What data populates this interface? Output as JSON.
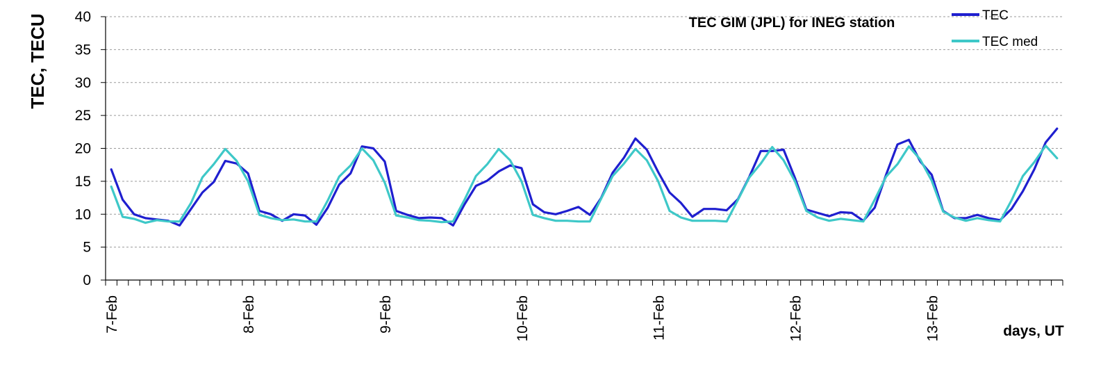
{
  "chart_data": {
    "type": "line",
    "title": "TEC GIM (JPL) for INEG station",
    "xlabel": "days, UT",
    "ylabel": "TEC, TECU",
    "ylim": [
      0,
      40
    ],
    "yticks": [
      "0",
      "5",
      "10",
      "15",
      "20",
      "25",
      "30",
      "35",
      "40"
    ],
    "x_tick_labels": [
      "7-Feb",
      "8-Feb",
      "9-Feb",
      "10-Feb",
      "11-Feb",
      "12-Feb",
      "13-Feb"
    ],
    "points_per_day": 12,
    "grid": "horizontal-dashed",
    "legend_position": "top-right",
    "colors": {
      "TEC": "#1f1fcf",
      "TEC med": "#3ec8c8"
    },
    "series": [
      {
        "name": "TEC",
        "values": [
          16.8,
          12.2,
          10.0,
          9.4,
          9.2,
          9.0,
          8.3,
          10.8,
          13.3,
          14.9,
          18.1,
          17.7,
          16.2,
          10.5,
          10.0,
          9.0,
          10.0,
          9.8,
          8.4,
          11.0,
          14.5,
          16.2,
          20.3,
          20.0,
          18.0,
          10.5,
          9.9,
          9.4,
          9.5,
          9.4,
          8.3,
          11.5,
          14.3,
          15.1,
          16.5,
          17.4,
          17.0,
          11.5,
          10.3,
          10.0,
          10.5,
          11.1,
          9.9,
          12.5,
          16.3,
          18.6,
          21.5,
          19.8,
          16.4,
          13.3,
          11.7,
          9.6,
          10.8,
          10.8,
          10.6,
          12.3,
          15.7,
          19.6,
          19.6,
          19.8,
          15.5,
          10.7,
          10.2,
          9.7,
          10.3,
          10.2,
          9.0,
          11.0,
          16.0,
          20.6,
          21.3,
          18.0,
          16.0,
          10.5,
          9.4,
          9.4,
          9.9,
          9.4,
          9.1,
          10.8,
          13.5,
          16.8,
          20.9,
          23.0
        ]
      },
      {
        "name": "TEC med",
        "values": [
          14.2,
          9.6,
          9.3,
          8.7,
          9.1,
          8.9,
          8.9,
          11.7,
          15.6,
          17.6,
          19.9,
          18.1,
          15.0,
          9.9,
          9.4,
          9.1,
          9.2,
          8.9,
          8.9,
          12.1,
          15.7,
          17.4,
          20.0,
          18.2,
          14.8,
          9.8,
          9.5,
          9.1,
          9.0,
          8.8,
          8.9,
          12.2,
          15.8,
          17.6,
          19.9,
          18.2,
          15.0,
          9.9,
          9.4,
          9.0,
          9.0,
          8.9,
          8.9,
          12.4,
          15.8,
          17.7,
          19.9,
          18.2,
          15.0,
          10.5,
          9.5,
          9.0,
          9.0,
          9.0,
          8.9,
          12.2,
          15.6,
          17.7,
          20.2,
          18.2,
          15.0,
          10.5,
          9.5,
          9.0,
          9.3,
          9.1,
          8.9,
          12.2,
          15.7,
          17.6,
          20.3,
          18.3,
          15.1,
          10.4,
          9.5,
          9.0,
          9.4,
          9.1,
          8.9,
          12.1,
          15.8,
          17.9,
          20.4,
          18.5
        ]
      }
    ]
  }
}
